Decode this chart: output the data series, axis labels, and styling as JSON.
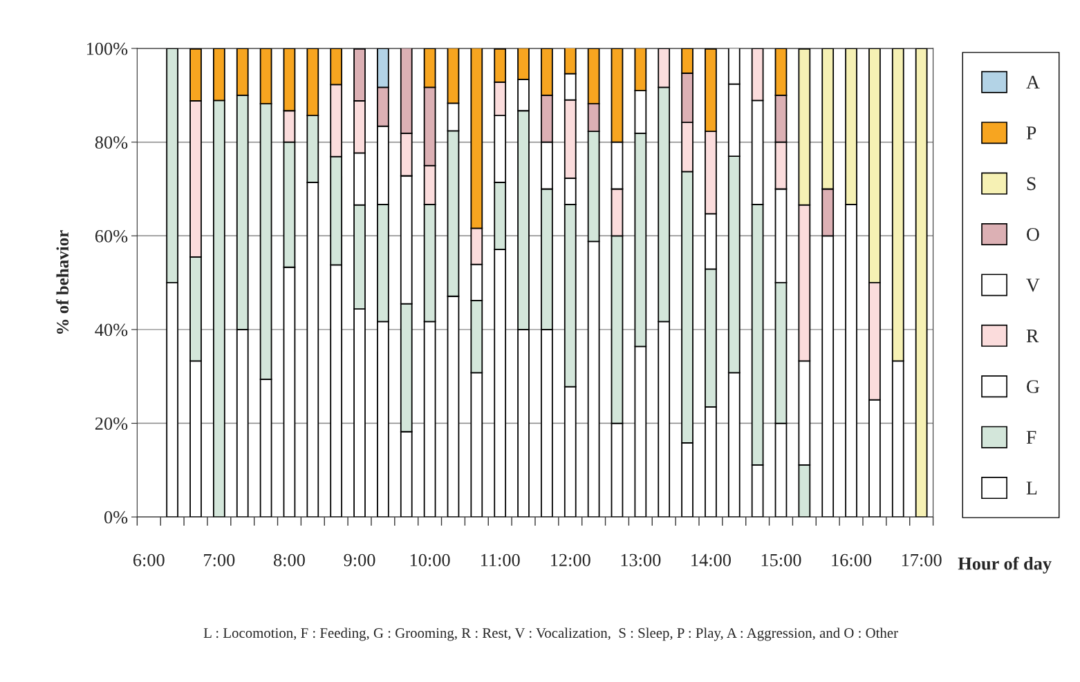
{
  "chart_data": {
    "type": "bar",
    "stacked": true,
    "xlabel": "Hour of day",
    "ylabel": "% of behavior",
    "categories": [
      "6:00",
      null,
      null,
      "7:00",
      null,
      null,
      "8:00",
      null,
      null,
      "9:00",
      null,
      null,
      "10:00",
      null,
      null,
      "11:00",
      null,
      null,
      "12:00",
      null,
      null,
      "13:00",
      null,
      null,
      "14:00",
      null,
      null,
      "15:00",
      null,
      null,
      "16:00",
      null,
      null,
      "17:00"
    ],
    "series": [
      {
        "name": "L",
        "color": "#ffffff",
        "values": [
          null,
          50,
          33.3,
          null,
          40,
          29.4,
          53.3,
          71.4,
          53.8,
          44.4,
          41.7,
          18.2,
          41.7,
          47.1,
          30.8,
          57.1,
          40,
          40,
          27.8,
          58.8,
          20,
          36.4,
          41.7,
          15.8,
          23.5,
          30.8,
          11.1,
          20,
          null,
          60,
          66.7,
          25,
          33.3,
          null
        ]
      },
      {
        "name": "F",
        "color": "#d3e6da",
        "values": [
          null,
          50,
          22.2,
          88.9,
          50,
          58.8,
          26.7,
          14.3,
          23.1,
          22.2,
          25,
          27.3,
          25,
          35.3,
          15.4,
          14.3,
          46.7,
          30,
          38.9,
          23.5,
          40,
          45.5,
          50,
          57.9,
          29.4,
          46.2,
          55.6,
          30,
          11.1,
          null,
          null,
          null,
          null,
          null
        ]
      },
      {
        "name": "G",
        "color": "#ffffff",
        "values": [
          null,
          null,
          null,
          null,
          null,
          null,
          null,
          null,
          null,
          11.1,
          16.7,
          27.3,
          null,
          5.9,
          7.7,
          14.3,
          6.7,
          10,
          5.6,
          null,
          null,
          9.1,
          null,
          null,
          11.8,
          15.4,
          22.2,
          20,
          22.2,
          null,
          null,
          null,
          null,
          null
        ]
      },
      {
        "name": "R",
        "color": "#fbdcdc",
        "values": [
          null,
          null,
          33.3,
          null,
          null,
          null,
          6.7,
          null,
          15.4,
          11.1,
          null,
          9.1,
          8.3,
          null,
          7.7,
          7.1,
          null,
          null,
          16.7,
          null,
          10,
          null,
          8.3,
          10.5,
          17.6,
          null,
          11.1,
          10,
          33.3,
          null,
          null,
          25,
          null,
          null
        ]
      },
      {
        "name": "V",
        "color": "#ffffff",
        "values": [
          null,
          null,
          null,
          null,
          null,
          null,
          null,
          null,
          null,
          null,
          null,
          null,
          null,
          null,
          null,
          null,
          null,
          null,
          5.6,
          null,
          10,
          null,
          null,
          null,
          null,
          7.7,
          null,
          null,
          null,
          null,
          null,
          null,
          null,
          null
        ]
      },
      {
        "name": "O",
        "color": "#dcb0b4",
        "values": [
          null,
          null,
          null,
          null,
          null,
          null,
          null,
          null,
          null,
          11.1,
          8.3,
          18.2,
          16.7,
          null,
          null,
          null,
          null,
          10,
          null,
          5.9,
          null,
          null,
          null,
          10.5,
          null,
          null,
          null,
          10,
          null,
          10,
          null,
          null,
          null,
          null
        ]
      },
      {
        "name": "S",
        "color": "#f6f1b4",
        "values": [
          null,
          null,
          null,
          null,
          null,
          null,
          null,
          null,
          null,
          null,
          null,
          null,
          null,
          null,
          null,
          null,
          null,
          null,
          null,
          null,
          null,
          null,
          null,
          null,
          null,
          null,
          null,
          null,
          33.3,
          30,
          33.3,
          50,
          66.7,
          100
        ]
      },
      {
        "name": "P",
        "color": "#f7a520",
        "values": [
          null,
          null,
          11.1,
          11.1,
          10,
          11.8,
          13.3,
          14.3,
          7.7,
          null,
          null,
          null,
          8.3,
          11.8,
          38.5,
          7.1,
          6.7,
          10,
          5.6,
          11.8,
          20,
          9.1,
          null,
          5.3,
          17.6,
          null,
          null,
          10,
          null,
          null,
          null,
          null,
          null,
          null
        ]
      },
      {
        "name": "A",
        "color": "#b3d3e6",
        "values": [
          null,
          null,
          null,
          null,
          null,
          null,
          null,
          null,
          null,
          null,
          8.3,
          null,
          null,
          null,
          null,
          null,
          null,
          null,
          null,
          null,
          null,
          null,
          null,
          null,
          null,
          null,
          null,
          null,
          null,
          null,
          null,
          null,
          null,
          null
        ]
      }
    ],
    "ylim": [
      0,
      100
    ],
    "yticks": [
      {
        "value": 0,
        "label": "0%"
      },
      {
        "value": 20,
        "label": "20%"
      },
      {
        "value": 40,
        "label": "40%"
      },
      {
        "value": 60,
        "label": "60%"
      },
      {
        "value": 80,
        "label": "80%"
      },
      {
        "value": 100,
        "label": "100%"
      }
    ],
    "grid": "y",
    "legend": "right",
    "annotations": [
      "L : Locomotion, F : Feeding, G : Grooming, R : Rest, V : Vocalization,  S : Sleep, P : Play, A : Aggression, and O : Other"
    ]
  }
}
